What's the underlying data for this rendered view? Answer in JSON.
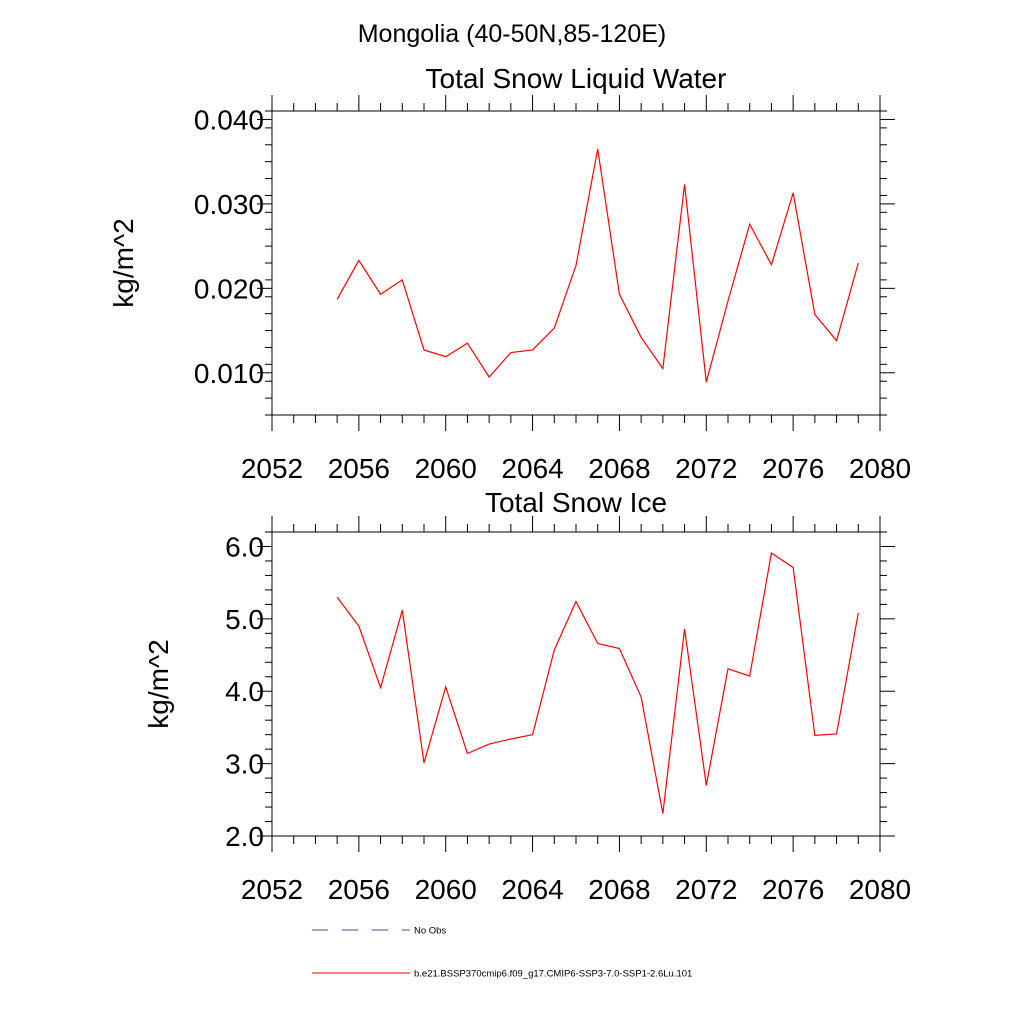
{
  "figure": {
    "title": "Mongolia (40-50N,85-120E)"
  },
  "chart_data": [
    {
      "type": "line",
      "title": "Total Snow Liquid Water",
      "xlabel": "",
      "ylabel": "kg/m^2",
      "xlim": [
        2052,
        2080
      ],
      "ylim": [
        0.005,
        0.041
      ],
      "xticks": [
        2052,
        2056,
        2060,
        2064,
        2068,
        2072,
        2076,
        2080
      ],
      "xtick_labels": [
        "2052",
        "2056",
        "2060",
        "2064",
        "2068",
        "2072",
        "2076",
        "2080"
      ],
      "yticks": [
        0.01,
        0.02,
        0.03,
        0.04
      ],
      "ytick_labels": [
        "0.010",
        "0.020",
        "0.030",
        "0.040"
      ],
      "series": [
        {
          "name": "b.e21.BSSP370cmip6.f09_g17.CMIP6-SSP3-7.0-SSP1-2.6Lu.101",
          "color": "#ff0000",
          "x": [
            2055,
            2056,
            2057,
            2058,
            2059,
            2060,
            2061,
            2062,
            2063,
            2064,
            2065,
            2066,
            2067,
            2068,
            2069,
            2070,
            2071,
            2072,
            2073,
            2074,
            2075,
            2076,
            2077,
            2078,
            2079
          ],
          "y": [
            0.0187,
            0.0233,
            0.0193,
            0.021,
            0.0127,
            0.0119,
            0.0135,
            0.0095,
            0.0124,
            0.0127,
            0.0153,
            0.0227,
            0.0365,
            0.0193,
            0.0142,
            0.0105,
            0.0323,
            0.0089,
            0.0185,
            0.0276,
            0.0228,
            0.0313,
            0.0169,
            0.0138,
            0.023
          ]
        }
      ]
    },
    {
      "type": "line",
      "title": "Total Snow Ice",
      "xlabel": "",
      "ylabel": "kg/m^2",
      "xlim": [
        2052,
        2080
      ],
      "ylim": [
        2.0,
        6.2
      ],
      "xticks": [
        2052,
        2056,
        2060,
        2064,
        2068,
        2072,
        2076,
        2080
      ],
      "xtick_labels": [
        "2052",
        "2056",
        "2060",
        "2064",
        "2068",
        "2072",
        "2076",
        "2080"
      ],
      "yticks": [
        2.0,
        3.0,
        4.0,
        5.0,
        6.0
      ],
      "ytick_labels": [
        "2.0",
        "3.0",
        "4.0",
        "5.0",
        "6.0"
      ],
      "series": [
        {
          "name": "b.e21.BSSP370cmip6.f09_g17.CMIP6-SSP3-7.0-SSP1-2.6Lu.101",
          "color": "#ff0000",
          "x": [
            2055,
            2056,
            2057,
            2058,
            2059,
            2060,
            2061,
            2062,
            2063,
            2064,
            2065,
            2066,
            2067,
            2068,
            2069,
            2070,
            2071,
            2072,
            2073,
            2074,
            2075,
            2076,
            2077,
            2078,
            2079
          ],
          "y": [
            5.3,
            4.9,
            4.05,
            5.12,
            3.01,
            4.06,
            3.14,
            3.27,
            3.34,
            3.4,
            4.57,
            5.24,
            4.66,
            4.59,
            3.92,
            2.31,
            4.86,
            2.7,
            4.31,
            4.21,
            5.91,
            5.71,
            3.39,
            3.41,
            5.08
          ]
        }
      ]
    }
  ],
  "legend": {
    "placement": "bottom-left",
    "entries": [
      {
        "label": "No Obs",
        "color": "#4a4aa0",
        "style": "dashed"
      },
      {
        "label": "b.e21.BSSP370cmip6.f09_g17.CMIP6-SSP3-7.0-SSP1-2.6Lu.101",
        "color": "#ff0000",
        "style": "solid"
      }
    ]
  }
}
